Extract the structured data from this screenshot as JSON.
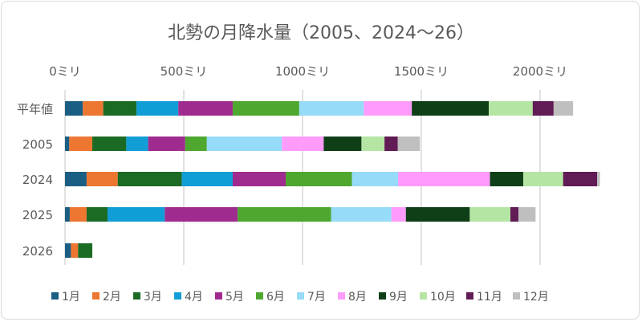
{
  "chart_data": {
    "type": "bar",
    "orientation": "horizontal",
    "stacked": true,
    "title": "北勢の月降水量（2005、2024～26）",
    "categories": [
      "平年値",
      "2005",
      "2024",
      "2025",
      "2026"
    ],
    "xlim": [
      0,
      2250
    ],
    "x_ticks": [
      0,
      500,
      1000,
      1500,
      2000
    ],
    "x_tick_labels": [
      "0ミリ",
      "500ミリ",
      "1000ミリ",
      "1500ミリ",
      "2000ミリ"
    ],
    "grid": true,
    "legend_position": "bottom",
    "series": [
      {
        "name": "1月",
        "color": "#1b5e83",
        "values": [
          75,
          18,
          91,
          20,
          25
        ]
      },
      {
        "name": "2月",
        "color": "#ed7631",
        "values": [
          86,
          97,
          131,
          71,
          30
        ]
      },
      {
        "name": "3月",
        "color": "#1c6b25",
        "values": [
          140,
          143,
          270,
          88,
          60
        ]
      },
      {
        "name": "4月",
        "color": "#119ed6",
        "values": [
          176,
          92,
          214,
          241,
          null
        ]
      },
      {
        "name": "5月",
        "color": "#a02b8f",
        "values": [
          229,
          156,
          223,
          307,
          null
        ]
      },
      {
        "name": "6月",
        "color": "#4ea72e",
        "values": [
          280,
          91,
          279,
          393,
          null
        ]
      },
      {
        "name": "7月",
        "color": "#96dbf7",
        "values": [
          272,
          316,
          194,
          254,
          null
        ]
      },
      {
        "name": "8月",
        "color": "#ff9cfb",
        "values": [
          202,
          176,
          387,
          61,
          null
        ]
      },
      {
        "name": "9月",
        "color": "#0f3f17",
        "values": [
          324,
          159,
          140,
          269,
          null
        ]
      },
      {
        "name": "10月",
        "color": "#b5e5a3",
        "values": [
          185,
          97,
          168,
          171,
          null
        ]
      },
      {
        "name": "11月",
        "color": "#611b55",
        "values": [
          88,
          56,
          143,
          34,
          null
        ]
      },
      {
        "name": "12月",
        "color": "#bfbfbf",
        "values": [
          82,
          93,
          12,
          72,
          null
        ]
      }
    ]
  }
}
